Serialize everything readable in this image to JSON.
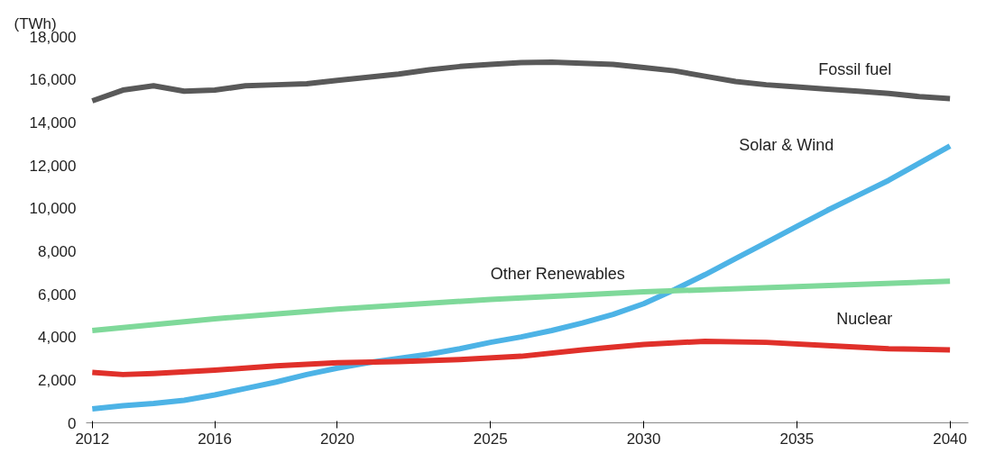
{
  "chart_data": {
    "type": "line",
    "ylabel": "(TWh)",
    "xlim": [
      2011.8,
      2040.6
    ],
    "xticks": [
      2012,
      2016,
      2020,
      2025,
      2030,
      2035,
      2040
    ],
    "ylim": [
      0,
      18000
    ],
    "yticks": [
      {
        "value": 0,
        "label": "0"
      },
      {
        "value": 2000,
        "label": "2,000"
      },
      {
        "value": 4000,
        "label": "4,000"
      },
      {
        "value": 6000,
        "label": "6,000"
      },
      {
        "value": 8000,
        "label": "8,000"
      },
      {
        "value": 10000,
        "label": "10,000"
      },
      {
        "value": 12000,
        "label": "12,000"
      },
      {
        "value": 14000,
        "label": "14,000"
      },
      {
        "value": 16000,
        "label": "16,000"
      },
      {
        "value": 18000,
        "label": "18,000"
      }
    ],
    "grid": false,
    "line_style": "solid",
    "marker": "none",
    "series": [
      {
        "name": "Fossil fuel",
        "color": "#595959",
        "x": [
          2012,
          2013,
          2014,
          2015,
          2016,
          2017,
          2018,
          2019,
          2020,
          2021,
          2022,
          2023,
          2024,
          2025,
          2026,
          2027,
          2028,
          2029,
          2030,
          2031,
          2032,
          2033,
          2034,
          2035,
          2036,
          2037,
          2038,
          2039,
          2040
        ],
        "values": [
          15000,
          15500,
          15700,
          15450,
          15500,
          15700,
          15750,
          15800,
          15950,
          16100,
          16250,
          16450,
          16600,
          16700,
          16780,
          16800,
          16750,
          16700,
          16550,
          16400,
          16150,
          15900,
          15750,
          15650,
          15550,
          15450,
          15350,
          15200,
          15100
        ]
      },
      {
        "name": "Solar & Wind",
        "color": "#4db3e6",
        "x": [
          2012,
          2013,
          2014,
          2015,
          2016,
          2017,
          2018,
          2019,
          2020,
          2021,
          2022,
          2023,
          2024,
          2025,
          2026,
          2027,
          2028,
          2029,
          2030,
          2031,
          2032,
          2033,
          2034,
          2035,
          2036,
          2037,
          2038,
          2039,
          2040
        ],
        "values": [
          650,
          800,
          900,
          1050,
          1300,
          1600,
          1900,
          2250,
          2550,
          2800,
          3000,
          3200,
          3450,
          3750,
          4000,
          4300,
          4650,
          5050,
          5550,
          6200,
          6900,
          7650,
          8400,
          9150,
          9900,
          10600,
          11300,
          12100,
          12900
        ]
      },
      {
        "name": "Other Renewables",
        "color": "#7fd99a",
        "x": [
          2012,
          2016,
          2020,
          2025,
          2030,
          2035,
          2040
        ],
        "values": [
          4300,
          4850,
          5300,
          5750,
          6100,
          6350,
          6600
        ]
      },
      {
        "name": "Nuclear",
        "color": "#e0302a",
        "x": [
          2012,
          2013,
          2014,
          2016,
          2018,
          2020,
          2022,
          2024,
          2026,
          2028,
          2030,
          2032,
          2034,
          2036,
          2038,
          2040
        ],
        "values": [
          2350,
          2250,
          2300,
          2450,
          2650,
          2800,
          2850,
          2950,
          3100,
          3400,
          3650,
          3800,
          3750,
          3600,
          3450,
          3400
        ]
      }
    ]
  }
}
